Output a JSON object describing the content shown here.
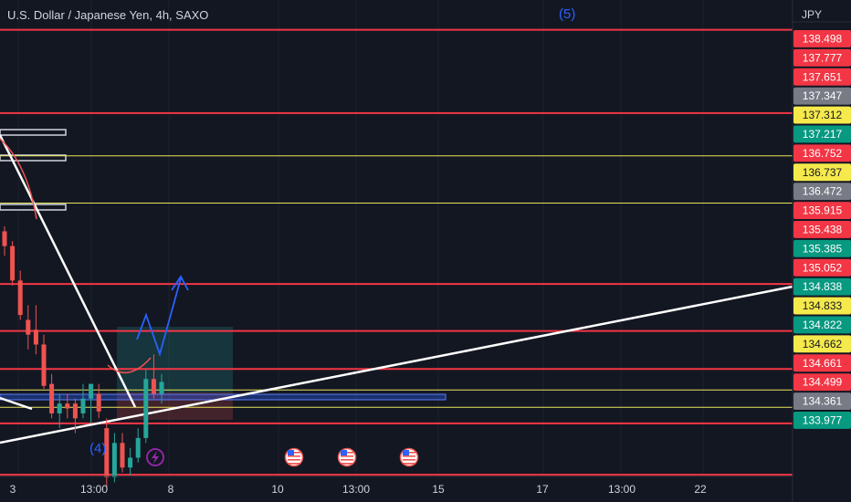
{
  "title": "U.S. Dollar / Japanese Yen, 4h, SAXO",
  "axis_unit": "JPY",
  "colors": {
    "background": "#131722",
    "up": "#26a69a",
    "down": "#ef5350",
    "level_line": "#f23645",
    "yellow_line": "#e6e65c",
    "trend_line": "#ffffff",
    "wave_label": "#2962ff",
    "grid": "#1e222d",
    "text": "#d1d4dc"
  },
  "chart_data": {
    "type": "candlestick",
    "ylim": [
      133.7,
      138.8
    ],
    "x_tick_labels": [
      "3",
      "13:00",
      "8",
      "10",
      "13:00",
      "15",
      "17",
      "13:00",
      "22"
    ],
    "wave_labels": [
      "(4)",
      "(5)"
    ],
    "price_labels": [
      {
        "value": "138.498",
        "color": "red"
      },
      {
        "value": "137.777",
        "color": "red"
      },
      {
        "value": "137.651",
        "color": "red"
      },
      {
        "value": "137.347",
        "color": "gray"
      },
      {
        "value": "137.312",
        "color": "yellow"
      },
      {
        "value": "137.217",
        "color": "green"
      },
      {
        "value": "136.752",
        "color": "red"
      },
      {
        "value": "136.737",
        "color": "yellow"
      },
      {
        "value": "136.472",
        "color": "gray"
      },
      {
        "value": "135.915",
        "color": "red"
      },
      {
        "value": "135.438",
        "color": "red"
      },
      {
        "value": "135.385",
        "color": "green"
      },
      {
        "value": "135.052",
        "color": "red"
      },
      {
        "value": "134.838",
        "color": "green"
      },
      {
        "value": "134.833",
        "color": "yellow"
      },
      {
        "value": "134.822",
        "color": "green"
      },
      {
        "value": "134.662",
        "color": "yellow"
      },
      {
        "value": "134.661",
        "color": "red"
      },
      {
        "value": "134.499",
        "color": "red"
      },
      {
        "value": "134.361",
        "color": "gray"
      },
      {
        "value": "133.977",
        "color": "green"
      }
    ],
    "horizontal_levels": [
      {
        "price": 138.498,
        "style": "red"
      },
      {
        "price": 137.651,
        "style": "red"
      },
      {
        "price": 137.217,
        "style": "yellow"
      },
      {
        "price": 136.737,
        "style": "yellow"
      },
      {
        "price": 135.915,
        "style": "red"
      },
      {
        "price": 135.438,
        "style": "red"
      },
      {
        "price": 135.052,
        "style": "red"
      },
      {
        "price": 134.838,
        "style": "yellow"
      },
      {
        "price": 134.662,
        "style": "yellow"
      },
      {
        "price": 134.499,
        "style": "red"
      },
      {
        "price": 133.977,
        "style": "red"
      }
    ],
    "candles": [
      {
        "o": 136.45,
        "h": 136.5,
        "c": 136.3,
        "l": 136.2
      },
      {
        "o": 136.3,
        "h": 136.35,
        "c": 135.95,
        "l": 135.9
      },
      {
        "o": 135.95,
        "h": 136.05,
        "c": 135.6,
        "l": 135.55
      },
      {
        "o": 135.55,
        "h": 135.7,
        "c": 135.4,
        "l": 135.25
      },
      {
        "o": 135.45,
        "h": 135.7,
        "c": 135.3,
        "l": 135.2
      },
      {
        "o": 135.3,
        "h": 135.4,
        "c": 134.88,
        "l": 134.85
      },
      {
        "o": 134.9,
        "h": 135.0,
        "c": 134.6,
        "l": 134.55
      },
      {
        "o": 134.6,
        "h": 134.8,
        "c": 134.7,
        "l": 134.45
      },
      {
        "o": 134.7,
        "h": 134.8,
        "c": 134.65,
        "l": 134.55
      },
      {
        "o": 134.7,
        "h": 134.75,
        "c": 134.55,
        "l": 134.4
      },
      {
        "o": 134.6,
        "h": 134.9,
        "c": 134.75,
        "l": 134.55
      },
      {
        "o": 134.75,
        "h": 134.85,
        "c": 134.9,
        "l": 134.5
      },
      {
        "o": 134.8,
        "h": 134.9,
        "c": 134.62,
        "l": 134.55
      },
      {
        "o": 134.45,
        "h": 134.55,
        "c": 133.95,
        "l": 133.85
      },
      {
        "o": 133.95,
        "h": 134.4,
        "c": 134.3,
        "l": 133.9
      },
      {
        "o": 134.3,
        "h": 134.4,
        "c": 134.05,
        "l": 134.0
      },
      {
        "o": 134.05,
        "h": 134.25,
        "c": 134.15,
        "l": 133.97
      },
      {
        "o": 134.15,
        "h": 134.45,
        "c": 134.35,
        "l": 134.1
      },
      {
        "o": 134.35,
        "h": 135.05,
        "c": 134.95,
        "l": 134.3
      },
      {
        "o": 134.95,
        "h": 135.2,
        "c": 134.8,
        "l": 134.75
      },
      {
        "o": 134.8,
        "h": 135.0,
        "c": 134.92,
        "l": 134.7
      }
    ]
  }
}
